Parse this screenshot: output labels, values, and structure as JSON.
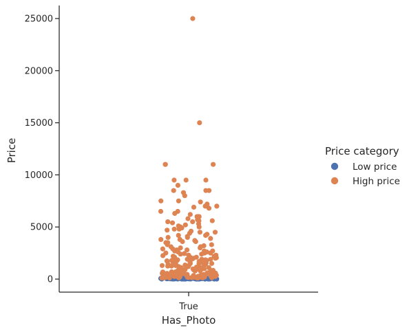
{
  "chart_data": {
    "type": "scatter",
    "subtype": "strip",
    "xlabel": "Has_Photo",
    "ylabel": "Price",
    "categories": [
      "True"
    ],
    "ylim": [
      -1250,
      26250
    ],
    "yticks": [
      0,
      5000,
      10000,
      15000,
      20000,
      25000
    ],
    "ytick_labels": [
      "0",
      "5000",
      "10000",
      "15000",
      "20000",
      "25000"
    ],
    "grid": false,
    "legend": {
      "title": "Price category",
      "placement": "right",
      "entries": [
        {
          "label": "Low price",
          "color": "#4c72b0"
        },
        {
          "label": "High price",
          "color": "#dd8452"
        }
      ]
    },
    "series": [
      {
        "name": "Low price",
        "color": "#4c72b0",
        "category": "True",
        "values": [
          0,
          0,
          5,
          10,
          15,
          20,
          25,
          30,
          35,
          40,
          45,
          50,
          60,
          70,
          80,
          90,
          99,
          0,
          10,
          20,
          30,
          40,
          50,
          60,
          70,
          80,
          90,
          99,
          0,
          15,
          35,
          55,
          75,
          95,
          5,
          25,
          45,
          65,
          85,
          0,
          20,
          40,
          60,
          80,
          10,
          30,
          50,
          70,
          90,
          99,
          0,
          12,
          24,
          36,
          48,
          60,
          72,
          84,
          96,
          3,
          18,
          33,
          48,
          63,
          78,
          93,
          8,
          28,
          48,
          68,
          88,
          0,
          22,
          44,
          66,
          88,
          6,
          26,
          46,
          66,
          86,
          0,
          14,
          34,
          54,
          74,
          94,
          2,
          21,
          41,
          61,
          81,
          99,
          0,
          17,
          37,
          57,
          77,
          97,
          11
        ]
      },
      {
        "name": "High price",
        "color": "#dd8452",
        "category": "True",
        "values": [
          25000,
          15000,
          11000,
          11000,
          11000,
          9500,
          9500,
          9500,
          9000,
          8500,
          8500,
          8500,
          8300,
          8000,
          7500,
          7500,
          7400,
          7200,
          7000,
          7000,
          6900,
          6800,
          6500,
          6500,
          6300,
          6200,
          6000,
          6000,
          6000,
          5800,
          5700,
          5600,
          5600,
          5500,
          5500,
          5400,
          5300,
          5200,
          5100,
          5000,
          5000,
          4900,
          4800,
          4800,
          4700,
          4600,
          4500,
          4500,
          4400,
          4300,
          4200,
          4200,
          4100,
          4000,
          4000,
          3900,
          3800,
          3800,
          3700,
          3600,
          3500,
          3500,
          3400,
          3300,
          3200,
          3100,
          3000,
          3000,
          2900,
          2800,
          2700,
          2600,
          2500,
          2500,
          2400,
          2300,
          2200,
          2100,
          2000,
          2000,
          1950,
          1900,
          1850,
          1800,
          1750,
          1700,
          1650,
          1600,
          1550,
          1500,
          1450,
          1400,
          1350,
          1300,
          1250,
          1200,
          1150,
          1100,
          1050,
          1000,
          980,
          950,
          920,
          900,
          880,
          850,
          820,
          800,
          780,
          750,
          720,
          700,
          680,
          650,
          620,
          600,
          580,
          550,
          520,
          500,
          480,
          450,
          420,
          400,
          380,
          350,
          320,
          300,
          280,
          250,
          220,
          200,
          180,
          160,
          150,
          140,
          130,
          120,
          110,
          105,
          2800,
          2600,
          2400,
          2200,
          2100,
          1900,
          1800,
          1700,
          1600,
          1500,
          1400,
          1300,
          1200,
          1100,
          1000,
          900,
          800,
          700,
          600,
          500,
          450,
          400,
          350,
          300,
          250,
          200,
          180,
          160,
          140,
          120,
          3600,
          3300,
          3100,
          2900,
          2700,
          2500,
          2300,
          2100,
          1950,
          1750,
          1550,
          1350,
          1150,
          950,
          750,
          550,
          350,
          150,
          2700,
          2450,
          2250,
          2050,
          1850,
          1650,
          1450,
          1250,
          1050,
          850,
          650,
          450,
          250,
          130,
          1900,
          1700,
          1500,
          1300,
          1100,
          900,
          700,
          500,
          300,
          110
        ]
      }
    ]
  }
}
